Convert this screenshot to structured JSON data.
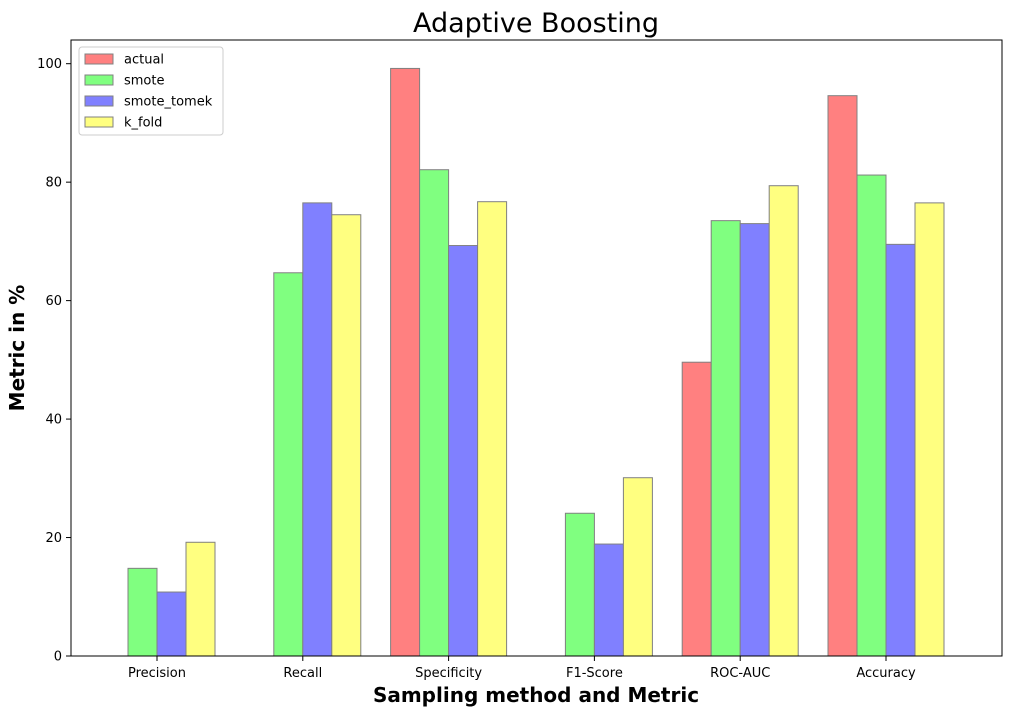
{
  "chart_data": {
    "type": "bar",
    "title": "Adaptive Boosting",
    "xlabel": "Sampling method and Metric",
    "ylabel": "Metric in %",
    "categories": [
      "Precision",
      "Recall",
      "Specificity",
      "F1-Score",
      "ROC-AUC",
      "Accuracy"
    ],
    "series": [
      {
        "name": "actual",
        "color": "#ff8080",
        "values": [
          0,
          0,
          99.2,
          0,
          49.6,
          94.6
        ]
      },
      {
        "name": "smote",
        "color": "#80ff80",
        "values": [
          14.8,
          64.7,
          82.1,
          24.1,
          73.5,
          81.2
        ]
      },
      {
        "name": "smote_tomek",
        "color": "#8080ff",
        "values": [
          10.8,
          76.5,
          69.3,
          18.9,
          73.0,
          69.5
        ]
      },
      {
        "name": "k_fold",
        "color": "#ffff80",
        "values": [
          19.2,
          74.5,
          76.7,
          30.1,
          79.4,
          76.5
        ]
      }
    ],
    "ylim": [
      0,
      104
    ],
    "yticks": [
      0,
      20,
      40,
      60,
      80,
      100
    ],
    "legend_position": "top-left",
    "grid": false,
    "bar_edge_color": "#808080"
  }
}
